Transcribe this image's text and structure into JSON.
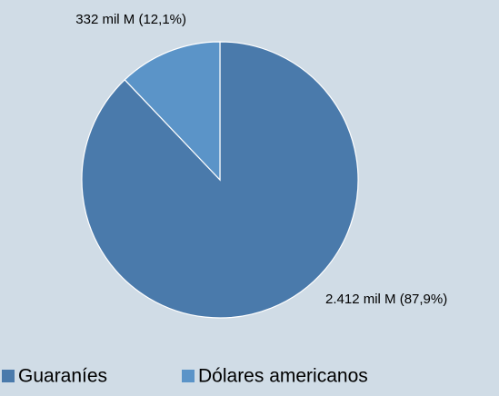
{
  "chart_data": {
    "type": "pie",
    "categories": [
      "Guaraníes",
      "Dólares americanos"
    ],
    "values": [
      2412,
      332
    ],
    "value_labels": [
      "2.412 mil M (87,9%)",
      "332 mil M (12,1%)"
    ],
    "colors": [
      "#4a7aab",
      "#5b94c8"
    ],
    "legend": "bottom"
  }
}
